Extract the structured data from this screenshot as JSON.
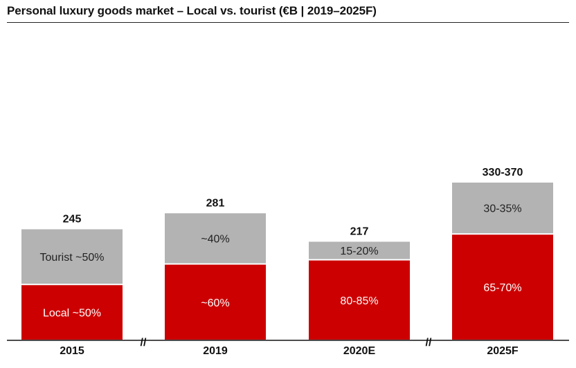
{
  "title": "Personal luxury goods market – Local vs. tourist (€B | 2019–2025F)",
  "colors": {
    "local": "#cc0000",
    "tourist": "#b3b3b3",
    "axis": "#111111"
  },
  "break_marker": "//",
  "chart_data": {
    "type": "bar",
    "stacked": true,
    "title": "Personal luxury goods market – Local vs. tourist (€B | 2019–2025F)",
    "categories": [
      "2015",
      "2019",
      "2020E",
      "2025F"
    ],
    "totals": [
      245,
      281,
      217,
      350
    ],
    "total_labels": [
      "245",
      "281",
      "217",
      "330-370"
    ],
    "series": [
      {
        "values": [
          122.5,
          168.6,
          178,
          236
        ],
        "labels": [
          "Local ~50%",
          "~60%",
          "80-85%",
          "65-70%"
        ]
      },
      {
        "values": [
          122.5,
          112.4,
          39,
          114
        ],
        "labels": [
          "Tourist ~50%",
          "~40%",
          "15-20%",
          "30-35%"
        ]
      }
    ],
    "axis_breaks_after": [
      "2015",
      "2020E"
    ],
    "ylim": [
      0,
      380
    ],
    "grid": false,
    "legend": "none"
  }
}
